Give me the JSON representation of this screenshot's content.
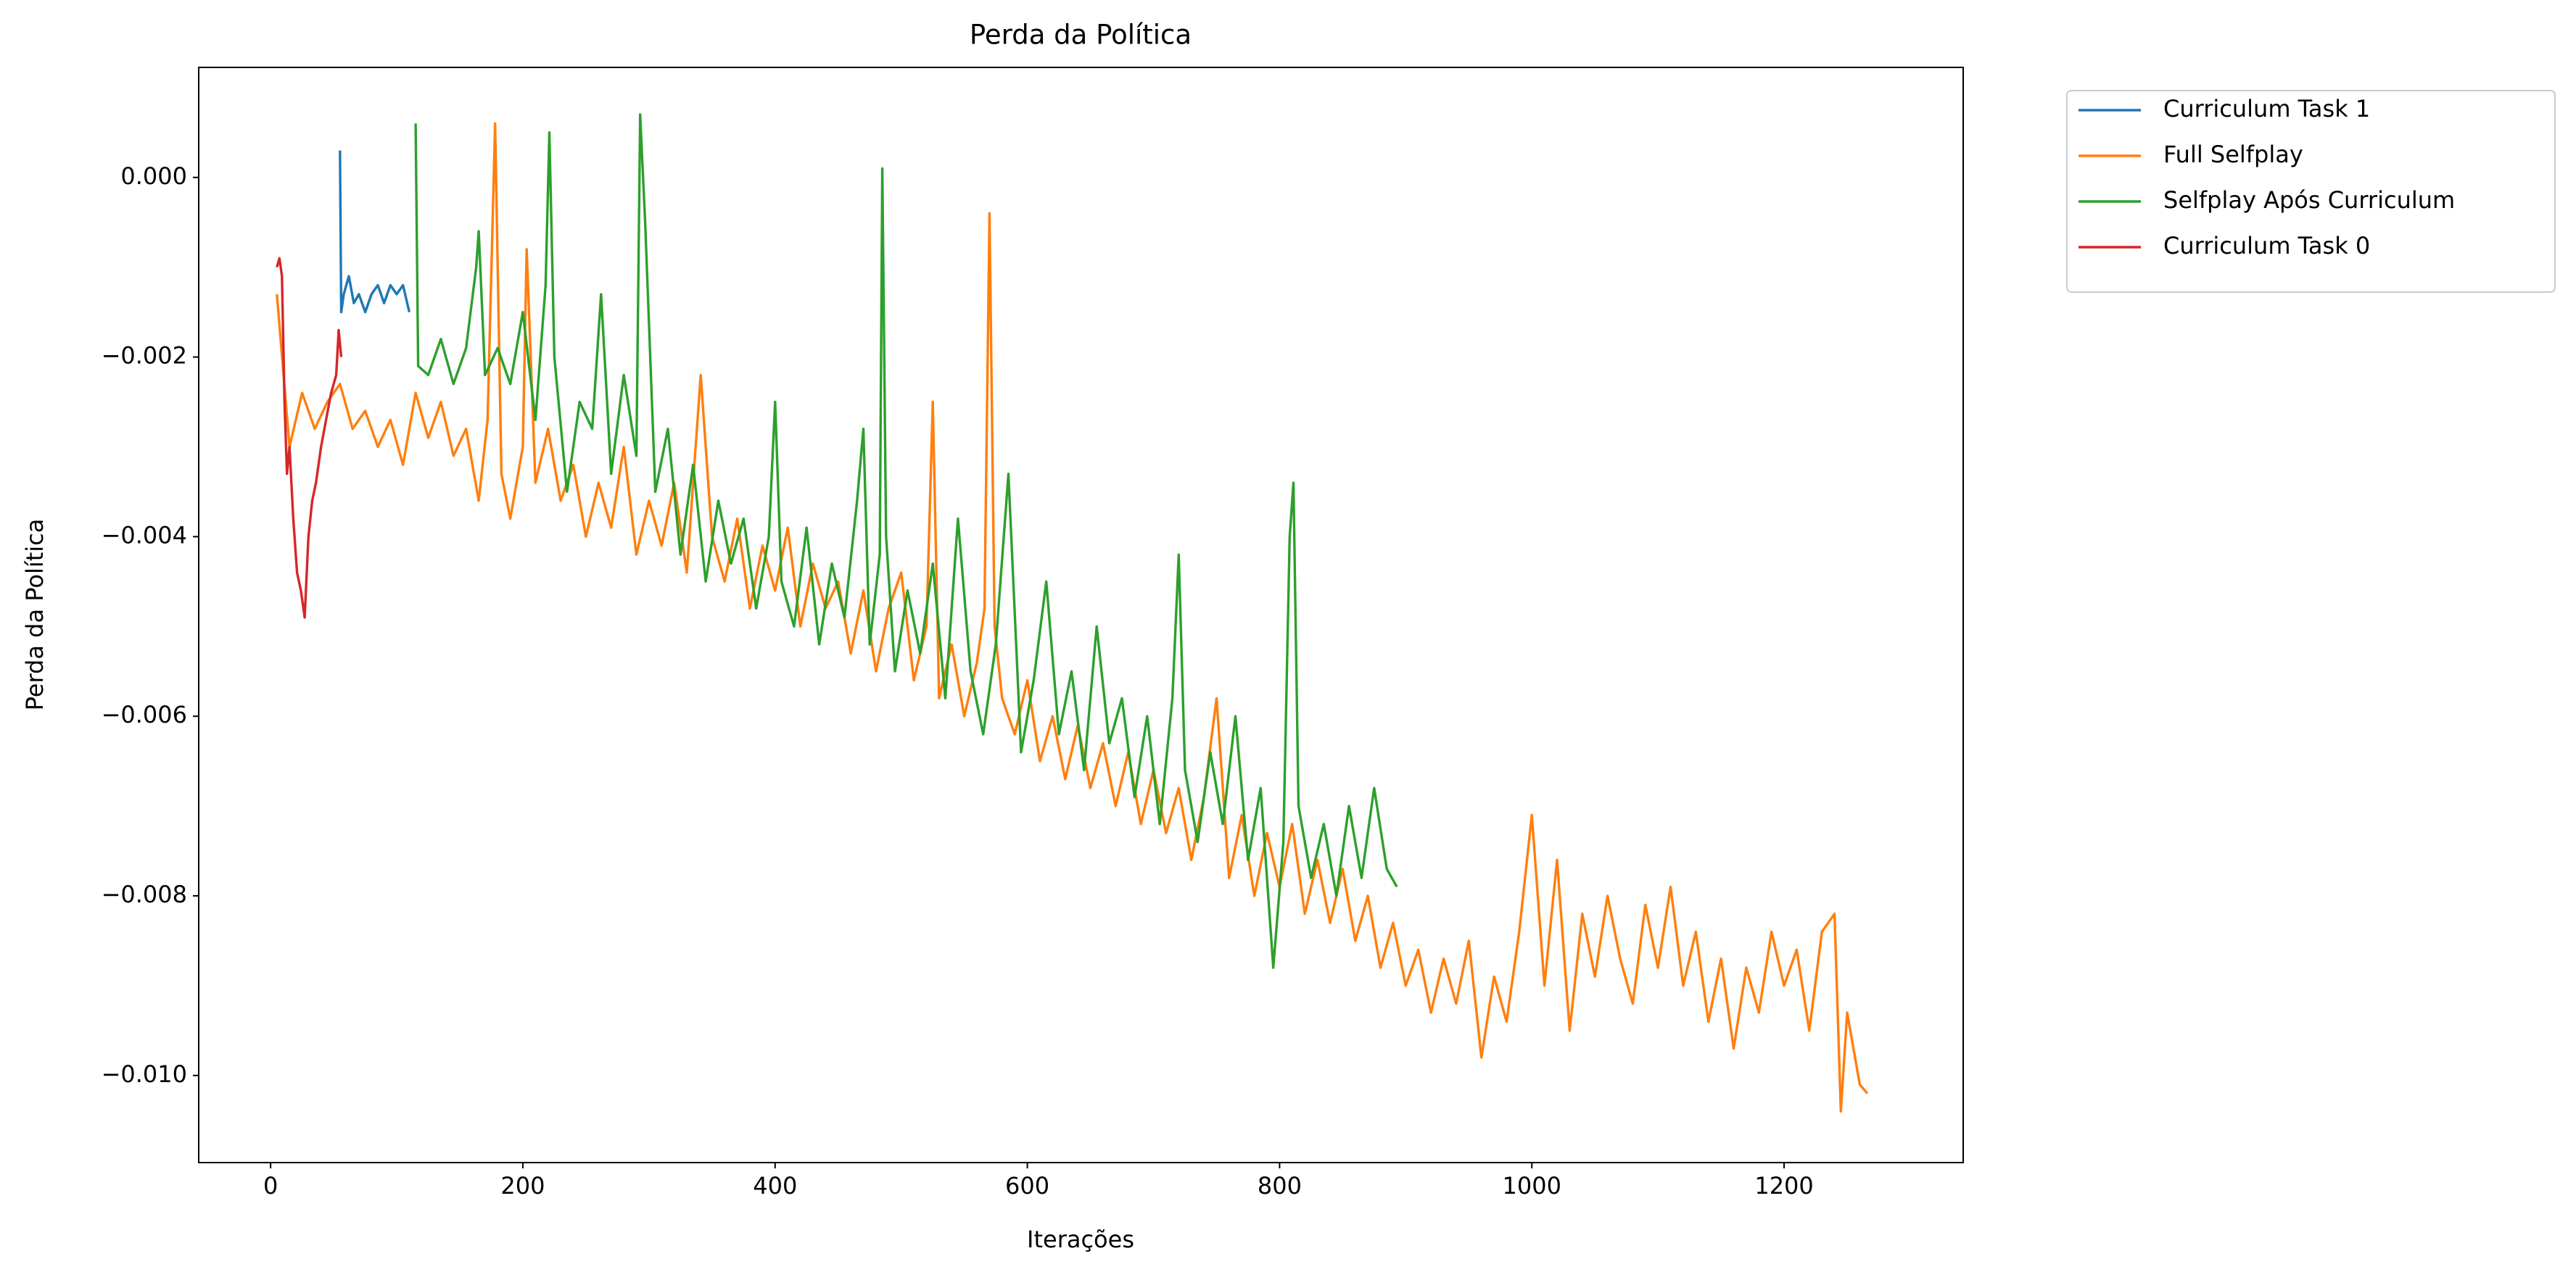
{
  "chart_data": {
    "type": "line",
    "title": "Perda da Política",
    "x_label": "Iterações",
    "y_label": "Perda da Política",
    "xlim": [
      -57,
      1342
    ],
    "ylim": [
      -0.01097,
      0.001225
    ],
    "xticks": [
      0,
      200,
      400,
      600,
      800,
      1000,
      1200
    ],
    "yticks": [
      {
        "value": -0.01,
        "label": "−0.010"
      },
      {
        "value": -0.008,
        "label": "−0.008"
      },
      {
        "value": -0.006,
        "label": "−0.006"
      },
      {
        "value": -0.004,
        "label": "−0.004"
      },
      {
        "value": -0.002,
        "label": "−0.002"
      },
      {
        "value": 0,
        "label": "0.000"
      }
    ],
    "grid": false,
    "legend": "outside upper right",
    "series": [
      {
        "name": "Curriculum Task 1",
        "color": "#1f77b4",
        "x": [
          55,
          56,
          58,
          62,
          66,
          70,
          75,
          80,
          85,
          90,
          95,
          100,
          105,
          110
        ],
        "values": [
          0.0003,
          -0.0015,
          -0.0013,
          -0.0011,
          -0.0014,
          -0.0013,
          -0.0015,
          -0.0013,
          -0.0012,
          -0.0014,
          -0.0012,
          -0.0013,
          -0.0012,
          -0.0015
        ]
      },
      {
        "name": "Full Selfplay",
        "color": "#ff7f0e",
        "x": [
          5,
          15,
          25,
          35,
          45,
          55,
          65,
          75,
          85,
          95,
          105,
          115,
          125,
          135,
          145,
          155,
          165,
          172,
          178,
          183,
          190,
          200,
          203,
          210,
          220,
          230,
          240,
          250,
          260,
          270,
          280,
          290,
          300,
          310,
          320,
          330,
          341,
          350,
          360,
          370,
          380,
          390,
          400,
          410,
          420,
          430,
          440,
          450,
          460,
          470,
          480,
          490,
          500,
          510,
          520,
          525,
          530,
          540,
          550,
          560,
          566,
          570,
          574,
          580,
          590,
          600,
          610,
          620,
          630,
          640,
          650,
          660,
          670,
          680,
          690,
          700,
          710,
          720,
          730,
          740,
          750,
          760,
          770,
          780,
          790,
          800,
          810,
          820,
          830,
          840,
          850,
          860,
          870,
          880,
          890,
          900,
          910,
          920,
          930,
          940,
          950,
          960,
          970,
          980,
          990,
          1000,
          1010,
          1020,
          1030,
          1040,
          1050,
          1060,
          1070,
          1080,
          1090,
          1100,
          1110,
          1120,
          1130,
          1140,
          1150,
          1160,
          1170,
          1180,
          1190,
          1200,
          1210,
          1220,
          1230,
          1240,
          1245,
          1250,
          1255,
          1260,
          1266
        ],
        "values": [
          -0.0013,
          -0.003,
          -0.0024,
          -0.0028,
          -0.0025,
          -0.0023,
          -0.0028,
          -0.0026,
          -0.003,
          -0.0027,
          -0.0032,
          -0.0024,
          -0.0029,
          -0.0025,
          -0.0031,
          -0.0028,
          -0.0036,
          -0.0027,
          0.0006,
          -0.0033,
          -0.0038,
          -0.003,
          -0.0008,
          -0.0034,
          -0.0028,
          -0.0036,
          -0.0032,
          -0.004,
          -0.0034,
          -0.0039,
          -0.003,
          -0.0042,
          -0.0036,
          -0.0041,
          -0.0034,
          -0.0044,
          -0.0022,
          -0.004,
          -0.0045,
          -0.0038,
          -0.0048,
          -0.0041,
          -0.0046,
          -0.0039,
          -0.005,
          -0.0043,
          -0.0048,
          -0.0045,
          -0.0053,
          -0.0046,
          -0.0055,
          -0.0048,
          -0.0044,
          -0.0056,
          -0.005,
          -0.0025,
          -0.0058,
          -0.0052,
          -0.006,
          -0.0054,
          -0.0048,
          -0.0004,
          -0.005,
          -0.0058,
          -0.0062,
          -0.0056,
          -0.0065,
          -0.006,
          -0.0067,
          -0.0061,
          -0.0068,
          -0.0063,
          -0.007,
          -0.0064,
          -0.0072,
          -0.0066,
          -0.0073,
          -0.0068,
          -0.0076,
          -0.0069,
          -0.0058,
          -0.0078,
          -0.0071,
          -0.008,
          -0.0073,
          -0.0079,
          -0.0072,
          -0.0082,
          -0.0076,
          -0.0083,
          -0.0077,
          -0.0085,
          -0.008,
          -0.0088,
          -0.0083,
          -0.009,
          -0.0086,
          -0.0093,
          -0.0087,
          -0.0092,
          -0.0085,
          -0.0098,
          -0.0089,
          -0.0094,
          -0.0084,
          -0.0071,
          -0.009,
          -0.0076,
          -0.0095,
          -0.0082,
          -0.0089,
          -0.008,
          -0.0087,
          -0.0092,
          -0.0081,
          -0.0088,
          -0.0079,
          -0.009,
          -0.0084,
          -0.0094,
          -0.0087,
          -0.0097,
          -0.0088,
          -0.0093,
          -0.0084,
          -0.009,
          -0.0086,
          -0.0095,
          -0.0084,
          -0.0082,
          -0.0104,
          -0.0093,
          -0.0097,
          -0.0101,
          -0.0102
        ]
      },
      {
        "name": "Selfplay Após Curriculum",
        "color": "#2ca02c",
        "x": [
          115,
          117,
          125,
          135,
          145,
          155,
          163,
          165,
          170,
          180,
          190,
          200,
          210,
          218,
          221,
          225,
          235,
          245,
          255,
          262,
          270,
          280,
          290,
          293,
          297,
          305,
          315,
          325,
          335,
          345,
          355,
          365,
          375,
          385,
          395,
          400,
          405,
          415,
          425,
          435,
          445,
          455,
          465,
          470,
          475,
          483,
          485,
          488,
          495,
          505,
          515,
          525,
          535,
          545,
          555,
          565,
          575,
          585,
          595,
          605,
          615,
          625,
          635,
          645,
          655,
          665,
          675,
          685,
          695,
          705,
          715,
          720,
          725,
          735,
          745,
          755,
          765,
          775,
          785,
          795,
          803,
          808,
          811,
          815,
          825,
          835,
          845,
          855,
          865,
          875,
          885,
          893
        ],
        "values": [
          0.0006,
          -0.0021,
          -0.0022,
          -0.0018,
          -0.0023,
          -0.0019,
          -0.001,
          -0.0006,
          -0.0022,
          -0.0019,
          -0.0023,
          -0.0015,
          -0.0027,
          -0.0012,
          0.0005,
          -0.002,
          -0.0035,
          -0.0025,
          -0.0028,
          -0.0013,
          -0.0033,
          -0.0022,
          -0.0031,
          0.0007,
          -0.0005,
          -0.0035,
          -0.0028,
          -0.0042,
          -0.0032,
          -0.0045,
          -0.0036,
          -0.0043,
          -0.0038,
          -0.0048,
          -0.004,
          -0.0025,
          -0.0045,
          -0.005,
          -0.0039,
          -0.0052,
          -0.0043,
          -0.0049,
          -0.0036,
          -0.0028,
          -0.0052,
          -0.0042,
          0.0001,
          -0.004,
          -0.0055,
          -0.0046,
          -0.0053,
          -0.0043,
          -0.0058,
          -0.0038,
          -0.0055,
          -0.0062,
          -0.0052,
          -0.0033,
          -0.0064,
          -0.0056,
          -0.0045,
          -0.0062,
          -0.0055,
          -0.0066,
          -0.005,
          -0.0063,
          -0.0058,
          -0.0069,
          -0.006,
          -0.0072,
          -0.0058,
          -0.0042,
          -0.0066,
          -0.0074,
          -0.0064,
          -0.0072,
          -0.006,
          -0.0076,
          -0.0068,
          -0.0088,
          -0.0074,
          -0.004,
          -0.0034,
          -0.007,
          -0.0078,
          -0.0072,
          -0.008,
          -0.007,
          -0.0078,
          -0.0068,
          -0.0077,
          -0.0079
        ]
      },
      {
        "name": "Curriculum Task 0",
        "color": "#d62728",
        "x": [
          5,
          7,
          9,
          11,
          13,
          15,
          18,
          21,
          24,
          27,
          30,
          33,
          36,
          40,
          44,
          48,
          52,
          54,
          56
        ],
        "values": [
          -0.001,
          -0.0009,
          -0.0011,
          -0.0025,
          -0.0033,
          -0.003,
          -0.0038,
          -0.0044,
          -0.0046,
          -0.0049,
          -0.004,
          -0.0036,
          -0.0034,
          -0.003,
          -0.0027,
          -0.0024,
          -0.0022,
          -0.0017,
          -0.002
        ]
      }
    ]
  }
}
